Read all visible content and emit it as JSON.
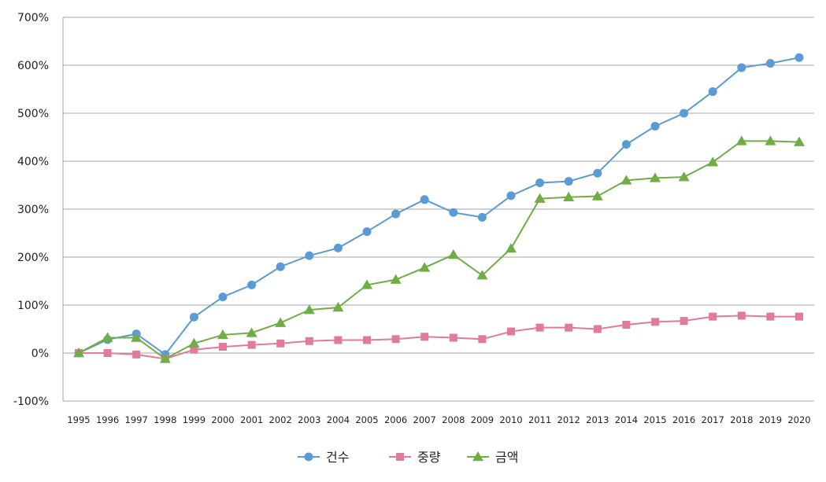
{
  "chart_data": {
    "type": "line",
    "categories": [
      "1995",
      "1996",
      "1997",
      "1998",
      "1999",
      "2000",
      "2001",
      "2002",
      "2003",
      "2004",
      "2005",
      "2006",
      "2007",
      "2008",
      "2009",
      "2010",
      "2011",
      "2012",
      "2013",
      "2014",
      "2015",
      "2016",
      "2017",
      "2018",
      "2019",
      "2020"
    ],
    "ylim": [
      -100,
      700
    ],
    "yticks": [
      -100,
      0,
      100,
      200,
      300,
      400,
      500,
      600,
      700
    ],
    "y_tick_labels": [
      "-100%",
      "0%",
      "100%",
      "200%",
      "300%",
      "400%",
      "500%",
      "600%",
      "700%"
    ],
    "grid": true,
    "legend_position": "bottom",
    "series": [
      {
        "name": "건수",
        "color": "#5b9bd5",
        "marker": "circle",
        "values": [
          0,
          28,
          40,
          -3,
          75,
          117,
          142,
          180,
          203,
          219,
          253,
          290,
          320,
          293,
          283,
          328,
          355,
          358,
          375,
          435,
          473,
          500,
          545,
          595,
          604,
          616
        ]
      },
      {
        "name": "중량",
        "color": "#e07b9a",
        "marker": "square",
        "values": [
          0,
          0,
          -3,
          -12,
          7,
          13,
          17,
          20,
          25,
          27,
          27,
          29,
          34,
          32,
          29,
          45,
          53,
          53,
          50,
          59,
          65,
          67,
          76,
          78,
          76,
          76
        ]
      },
      {
        "name": "금액",
        "color": "#70ad47",
        "marker": "triangle",
        "values": [
          0,
          32,
          32,
          -12,
          20,
          38,
          42,
          63,
          90,
          95,
          142,
          153,
          178,
          205,
          162,
          218,
          322,
          325,
          327,
          360,
          365,
          367,
          398,
          442,
          442,
          440
        ]
      }
    ]
  }
}
